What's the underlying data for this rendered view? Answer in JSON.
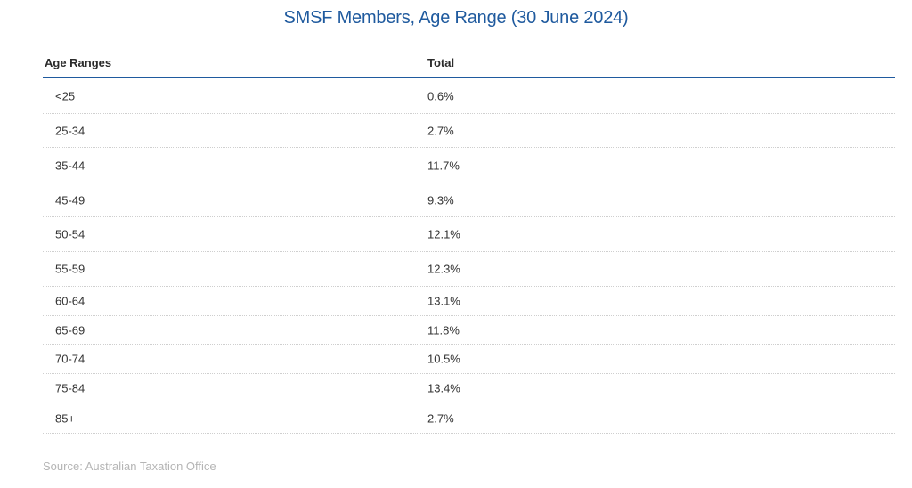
{
  "chart_data": {
    "type": "table",
    "title": "SMSF Members, Age Range (30 June 2024)",
    "columns": [
      "Age Ranges",
      "Total"
    ],
    "rows": [
      {
        "age_range": "<25",
        "total": "0.6%"
      },
      {
        "age_range": "25-34",
        "total": "2.7%"
      },
      {
        "age_range": "35-44",
        "total": "11.7%"
      },
      {
        "age_range": "45-49",
        "total": "9.3%"
      },
      {
        "age_range": "50-54",
        "total": "12.1%"
      },
      {
        "age_range": "55-59",
        "total": "12.3%"
      },
      {
        "age_range": "60-64",
        "total": "13.1%"
      },
      {
        "age_range": "65-69",
        "total": "11.8%"
      },
      {
        "age_range": "70-74",
        "total": "10.5%"
      },
      {
        "age_range": "75-84",
        "total": "13.4%"
      },
      {
        "age_range": "85+",
        "total": "2.7%"
      }
    ],
    "source": "Source: Australian Taxation Office"
  },
  "colors": {
    "title": "#1f5a9e",
    "header_rule": "#1f5a9e",
    "text": "#333333",
    "source_text": "#b5b5b5",
    "row_divider": "#cfcfcf"
  }
}
